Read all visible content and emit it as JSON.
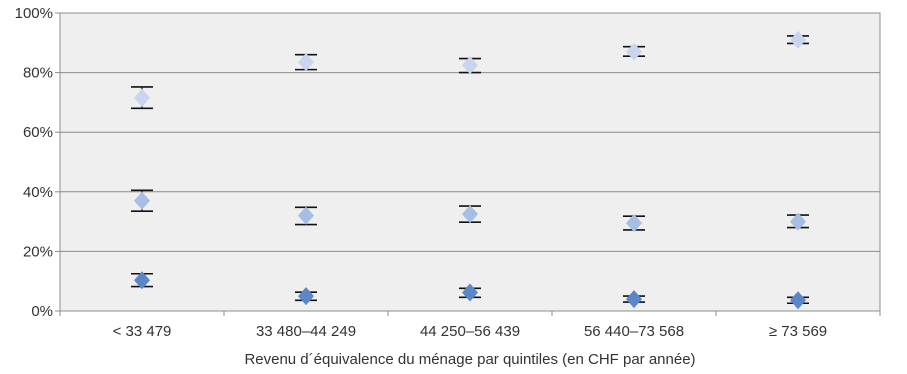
{
  "chart_data": {
    "type": "scatter",
    "title": "",
    "xlabel": "Revenu d´équivalence du ménage par quintiles (en CHF par année)",
    "ylabel": "",
    "categories": [
      "< 33 479",
      "33 480–44 249",
      "44 250–56 439",
      "56 440–73 568",
      "≥ 73 569"
    ],
    "ylim": [
      0,
      100
    ],
    "yticks": [
      "0%",
      "20%",
      "40%",
      "60%",
      "80%",
      "100%"
    ],
    "grid": true,
    "legend": "none",
    "series": [
      {
        "values": [
          71.5,
          83.5,
          82.5,
          87.0,
          91.0
        ],
        "err_low": [
          68.0,
          81.0,
          80.0,
          85.5,
          89.8
        ],
        "err_high": [
          75.2,
          86.0,
          84.7,
          88.7,
          92.3
        ],
        "color": "#c9d5ee"
      },
      {
        "values": [
          37.0,
          32.0,
          32.5,
          29.5,
          30.0
        ],
        "err_low": [
          33.5,
          29.0,
          29.8,
          27.2,
          28.0
        ],
        "err_high": [
          40.5,
          34.8,
          35.2,
          31.8,
          32.2
        ],
        "color": "#a6bde4"
      },
      {
        "values": [
          10.3,
          5.0,
          6.2,
          4.0,
          3.6
        ],
        "err_low": [
          8.2,
          3.6,
          4.6,
          3.0,
          2.6
        ],
        "err_high": [
          12.5,
          6.3,
          7.6,
          5.0,
          4.6
        ],
        "color": "#5b87c8"
      }
    ]
  },
  "colors": {
    "plot_background": "#efefef",
    "gridline": "#8c8c8c",
    "error_bar": "#111111"
  }
}
